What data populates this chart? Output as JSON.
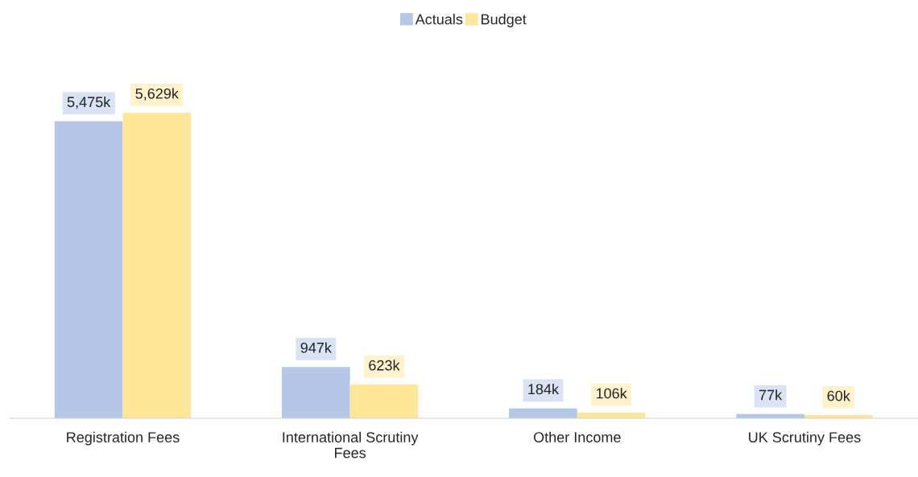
{
  "chart_data": {
    "type": "bar",
    "categories": [
      "Registration Fees",
      "International Scrutiny Fees",
      "Other Income",
      "UK Scrutiny Fees"
    ],
    "series": [
      {
        "name": "Actuals",
        "color": "#b4c7e7",
        "values": [
          5475,
          947,
          184,
          77
        ],
        "value_labels": [
          "5,475k",
          "947k",
          "184k",
          "77k"
        ]
      },
      {
        "name": "Budget",
        "color": "#ffe699",
        "values": [
          5629,
          623,
          106,
          60
        ],
        "value_labels": [
          "5,629k",
          "623k",
          "106k",
          "60k"
        ]
      }
    ],
    "legend": "top",
    "grid": false,
    "tick_labels": "x"
  }
}
